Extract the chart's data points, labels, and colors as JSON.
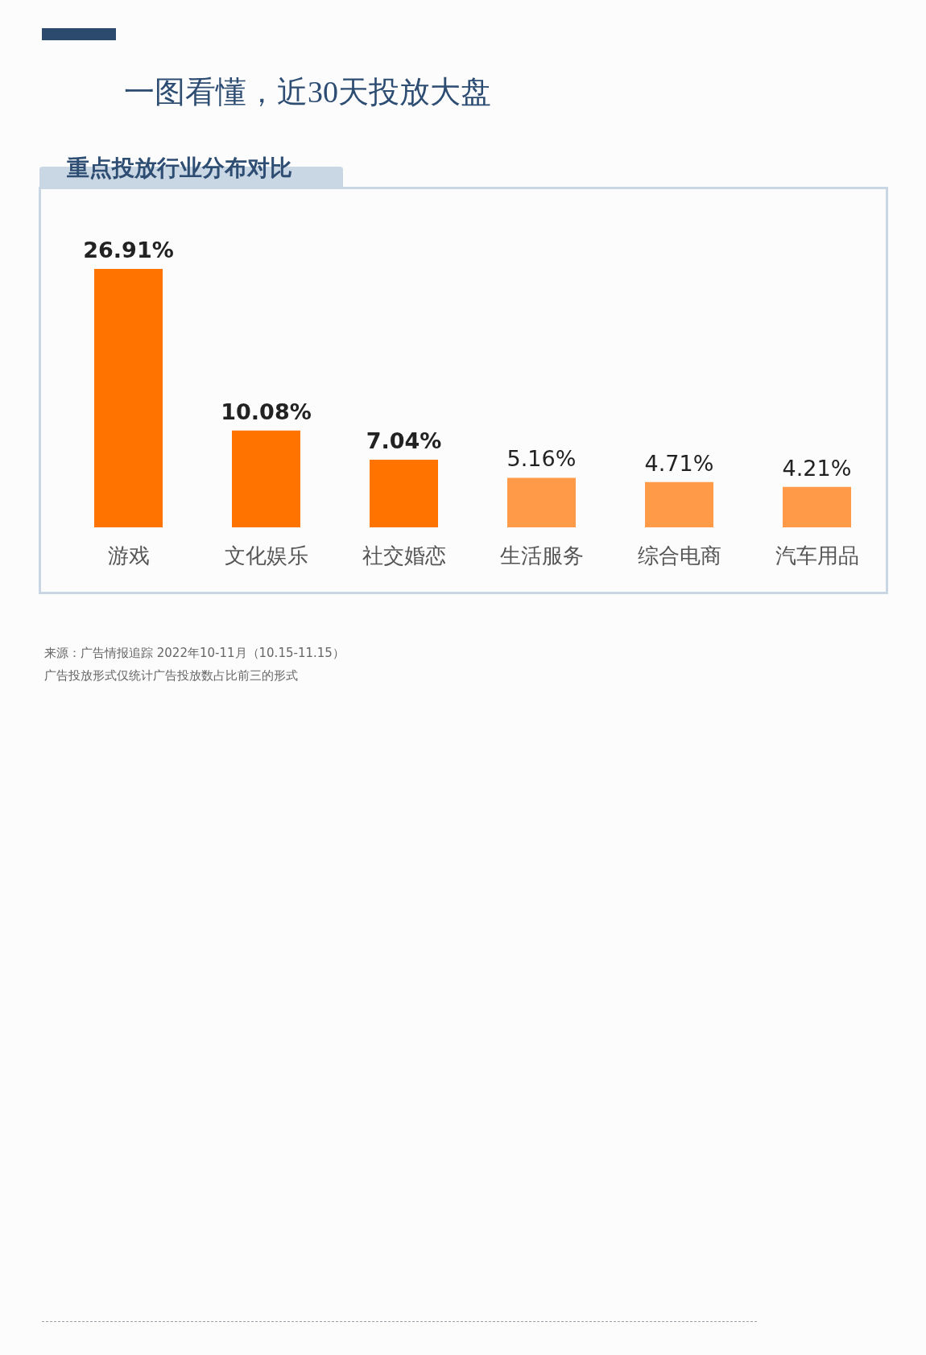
{
  "chart_data": {
    "type": "bar",
    "title": "一图看懂，近30天投放大盘",
    "subtitle": "重点投放行业分布对比",
    "categories": [
      "游戏",
      "文化娱乐",
      "社交婚恋",
      "生活服务",
      "综合电商",
      "汽车用品"
    ],
    "values": [
      26.91,
      10.08,
      7.04,
      5.16,
      4.71,
      4.21
    ],
    "colors": [
      "#ff7300",
      "#ff7300",
      "#ff7300",
      "#ff9a48",
      "#ff9a48",
      "#ff9a48"
    ],
    "value_labels": [
      "26.91%",
      "10.08%",
      "7.04%",
      "5.16%",
      "4.71%",
      "4.21%"
    ],
    "annotations": [
      "来源：广告情报追踪 2022年10-11月（10.15-11.15）",
      "广告投放形式仅统计广告投放数占比前三的形式"
    ]
  }
}
